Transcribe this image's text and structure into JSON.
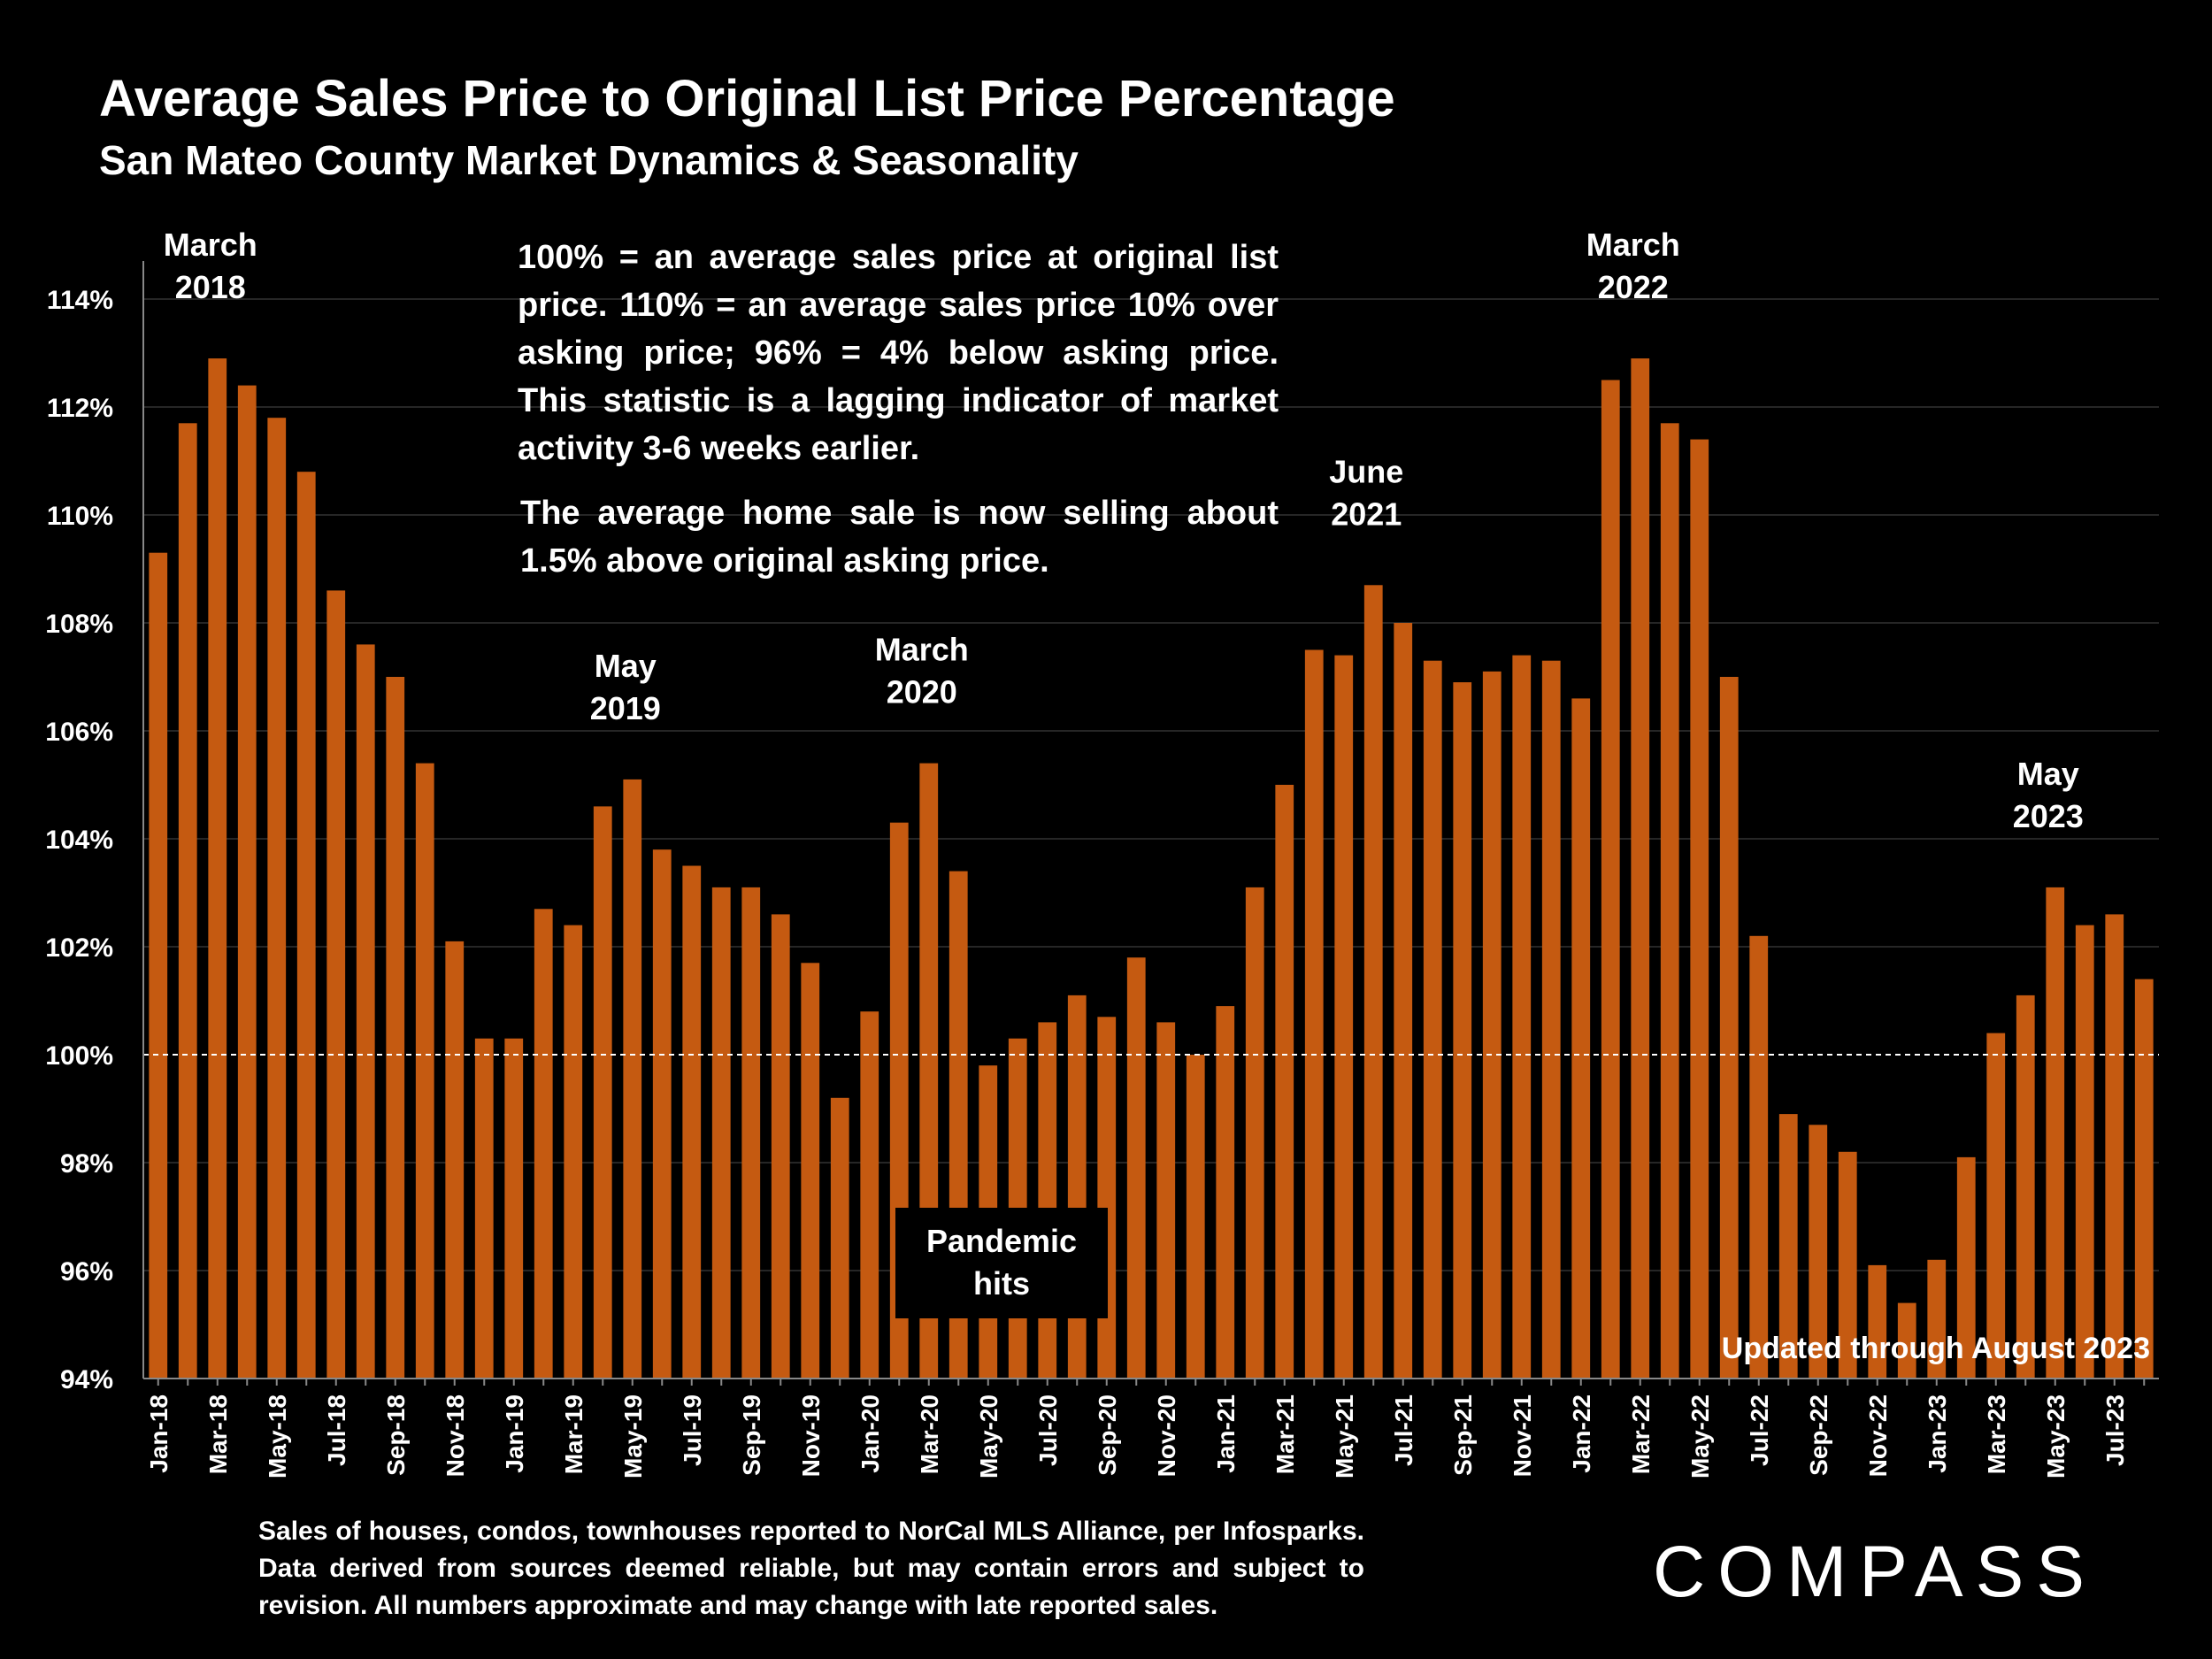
{
  "header": {
    "title": "Average Sales Price to Original List Price Percentage",
    "subtitle": "San Mateo County Market Dynamics & Seasonality"
  },
  "notes": {
    "definition": "100% = an average sales price at original list price. 110% = an average sales price 10% over asking price; 96% = 4% below asking price. This statistic is a lagging indicator of market activity 3-6 weeks earlier.",
    "current": "The average home sale is now selling about 1.5% above original asking price."
  },
  "pandemic_label": "Pandemic hits",
  "updated_label": "Updated through August 2023",
  "footnote": "Sales of houses, condos, townhouses reported to NorCal MLS Alliance, per Infosparks. Data derived from sources deemed reliable, but may contain errors and subject to revision. All numbers approximate and may change with late reported sales.",
  "logo_text": "COMPASS",
  "colors": {
    "bar": "#C55A11",
    "background": "#000000",
    "text": "#FFFFFF",
    "grid": "#333333"
  },
  "chart_data": {
    "type": "bar",
    "ylim": [
      94,
      114.5
    ],
    "yticks": [
      94,
      96,
      98,
      100,
      102,
      104,
      106,
      108,
      110,
      112,
      114
    ],
    "ytick_labels": [
      "94%",
      "96%",
      "98%",
      "100%",
      "102%",
      "104%",
      "106%",
      "108%",
      "110%",
      "112%",
      "114%"
    ],
    "reference_line": 100,
    "grid": true,
    "categories": [
      "Jan-18",
      "Feb-18",
      "Mar-18",
      "Apr-18",
      "May-18",
      "Jun-18",
      "Jul-18",
      "Aug-18",
      "Sep-18",
      "Oct-18",
      "Nov-18",
      "Dec-18",
      "Jan-19",
      "Feb-19",
      "Mar-19",
      "Apr-19",
      "May-19",
      "Jun-19",
      "Jul-19",
      "Aug-19",
      "Sep-19",
      "Oct-19",
      "Nov-19",
      "Dec-19",
      "Jan-20",
      "Feb-20",
      "Mar-20",
      "Apr-20",
      "May-20",
      "Jun-20",
      "Jul-20",
      "Aug-20",
      "Sep-20",
      "Oct-20",
      "Nov-20",
      "Dec-20",
      "Jan-21",
      "Feb-21",
      "Mar-21",
      "Apr-21",
      "May-21",
      "Jun-21",
      "Jul-21",
      "Aug-21",
      "Sep-21",
      "Oct-21",
      "Nov-21",
      "Dec-21",
      "Jan-22",
      "Feb-22",
      "Mar-22",
      "Apr-22",
      "May-22",
      "Jun-22",
      "Jul-22",
      "Aug-22",
      "Sep-22",
      "Oct-22",
      "Nov-22",
      "Dec-22",
      "Jan-23",
      "Feb-23",
      "Mar-23",
      "Apr-23",
      "May-23",
      "Jun-23",
      "Jul-23",
      "Aug-23"
    ],
    "values": [
      109.3,
      111.7,
      112.9,
      112.4,
      111.8,
      110.8,
      108.6,
      107.6,
      107.0,
      105.4,
      102.1,
      100.3,
      100.3,
      102.7,
      102.4,
      104.6,
      105.1,
      103.8,
      103.5,
      103.1,
      103.1,
      102.6,
      101.7,
      99.2,
      100.8,
      104.3,
      105.4,
      103.4,
      99.8,
      100.3,
      100.6,
      101.1,
      100.7,
      101.8,
      100.6,
      100.0,
      100.9,
      103.1,
      105.0,
      107.5,
      107.4,
      108.7,
      108.0,
      107.3,
      106.9,
      107.1,
      107.4,
      107.3,
      106.6,
      112.5,
      112.9,
      111.7,
      111.4,
      107.0,
      102.2,
      98.9,
      98.7,
      98.2,
      96.1,
      95.4,
      96.2,
      98.1,
      100.4,
      101.1,
      103.1,
      102.4,
      102.6,
      101.4
    ],
    "annotations": [
      {
        "index": 2,
        "line1": "March",
        "line2": "2018"
      },
      {
        "index": 16,
        "line1": "May",
        "line2": "2019"
      },
      {
        "index": 26,
        "line1": "March",
        "line2": "2020"
      },
      {
        "index": 41,
        "line1": "June",
        "line2": "2021"
      },
      {
        "index": 50,
        "line1": "March",
        "line2": "2022"
      },
      {
        "index": 64,
        "line1": "May",
        "line2": "2023"
      }
    ]
  }
}
